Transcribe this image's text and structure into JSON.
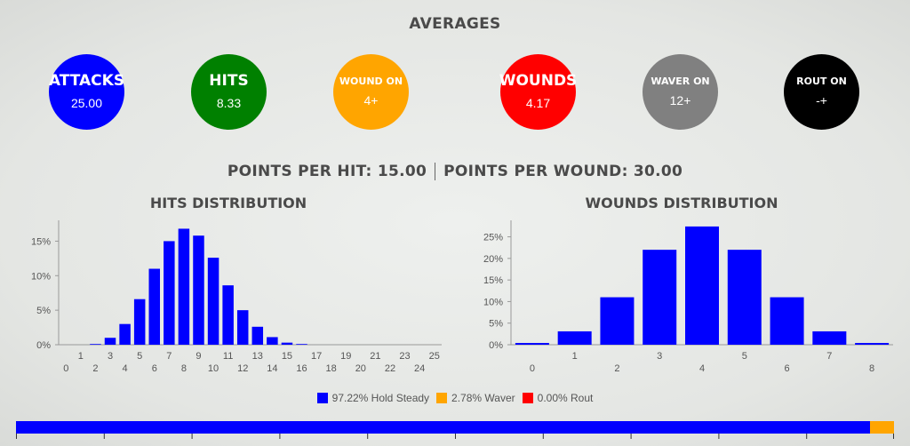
{
  "averages": {
    "title": "AVERAGES",
    "circles": [
      {
        "label": "ATTACKS",
        "value": "25.00",
        "color": "#0000ff"
      },
      {
        "label": "HITS",
        "value": "8.33",
        "color": "#008000"
      },
      {
        "label": "WOUND ON",
        "value": "4+",
        "color": "#ffa500"
      },
      {
        "label": "WOUNDS",
        "value": "4.17",
        "color": "#ff0000"
      },
      {
        "label": "WAVER ON",
        "value": "12+",
        "color": "#808080"
      },
      {
        "label": "ROUT ON",
        "value": "-+",
        "color": "#000000"
      }
    ]
  },
  "points": {
    "per_hit": "POINTS PER HIT: 15.00",
    "per_wound": "POINTS PER WOUND: 30.00"
  },
  "legend": [
    {
      "label": "97.22% Hold Steady",
      "color": "#0000ff"
    },
    {
      "label": "2.78% Waver",
      "color": "#ffa500"
    },
    {
      "label": "0.00% Rout",
      "color": "#ff0000"
    }
  ],
  "morale_bar": [
    {
      "name": "Hold Steady",
      "percent": 97.22,
      "color": "#0000ff"
    },
    {
      "name": "Waver",
      "percent": 2.78,
      "color": "#ffa500"
    },
    {
      "name": "Rout",
      "percent": 0.0,
      "color": "#ff0000"
    }
  ],
  "chart_data": [
    {
      "type": "bar",
      "title": "HITS DISTRIBUTION",
      "categories": [
        "0",
        "1",
        "2",
        "3",
        "4",
        "5",
        "6",
        "7",
        "8",
        "9",
        "10",
        "11",
        "12",
        "13",
        "14",
        "15",
        "16",
        "17",
        "18",
        "19",
        "20",
        "21",
        "22",
        "23",
        "24",
        "25"
      ],
      "series": [
        {
          "values": [
            0,
            0,
            0.1,
            1.0,
            3.0,
            6.6,
            11.0,
            15.0,
            16.8,
            15.8,
            12.6,
            8.6,
            5.0,
            2.6,
            1.1,
            0.3,
            0.1,
            0,
            0,
            0,
            0,
            0,
            0,
            0,
            0,
            0
          ]
        }
      ],
      "ylim": [
        0,
        17.5
      ],
      "yticks": [
        "0%",
        "5%",
        "10%",
        "15%"
      ],
      "color": "#0000ff"
    },
    {
      "type": "bar",
      "title": "WOUNDS DISTRIBUTION",
      "categories": [
        "0",
        "1",
        "2",
        "3",
        "4",
        "5",
        "6",
        "7",
        "8"
      ],
      "series": [
        {
          "values": [
            0.4,
            3.1,
            11.0,
            22.0,
            27.4,
            22.0,
            11.0,
            3.1,
            0.4
          ]
        }
      ],
      "ylim": [
        0,
        28
      ],
      "yticks": [
        "0%",
        "5%",
        "10%",
        "15%",
        "20%",
        "25%"
      ],
      "color": "#0000ff"
    }
  ]
}
